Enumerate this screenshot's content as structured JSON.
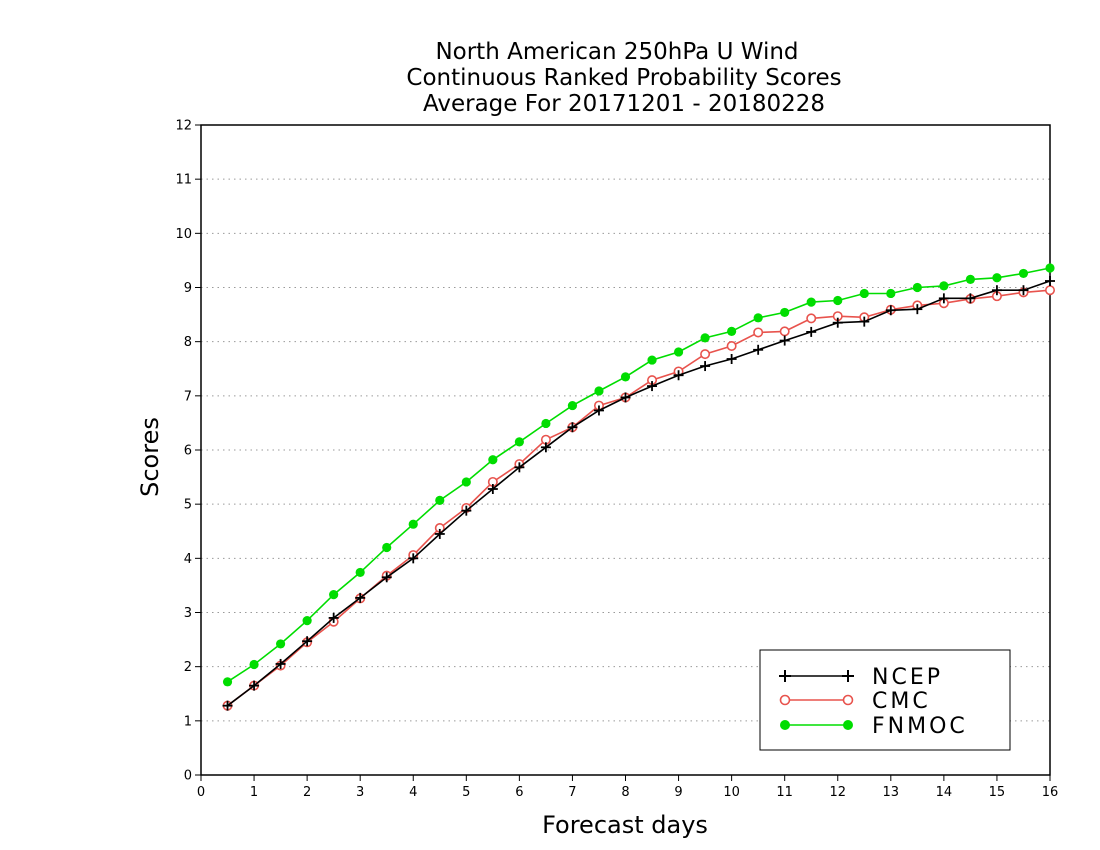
{
  "chart_data": {
    "type": "line",
    "title_lines": [
      "North American 250hPa U Wind",
      "Continuous Ranked Probability Scores",
      "Average For 20171201 - 20180228"
    ],
    "xlabel": "Forecast days",
    "ylabel": "Scores",
    "xlim": [
      0,
      16
    ],
    "ylim": [
      0,
      12
    ],
    "x_ticks": [
      "0",
      "1",
      "2",
      "3",
      "4",
      "5",
      "6",
      "7",
      "8",
      "9",
      "10",
      "11",
      "12",
      "13",
      "14",
      "15",
      "16"
    ],
    "y_ticks": [
      "0",
      "1",
      "2",
      "3",
      "4",
      "5",
      "6",
      "7",
      "8",
      "9",
      "10",
      "11",
      "12"
    ],
    "grid": "horizontal dotted",
    "legend_position": "bottom-right",
    "x": [
      0.5,
      1,
      1.5,
      2,
      2.5,
      3,
      3.5,
      4,
      4.5,
      5,
      5.5,
      6,
      6.5,
      7,
      7.5,
      8,
      8.5,
      9,
      9.5,
      10,
      10.5,
      11,
      11.5,
      12,
      12.5,
      13,
      13.5,
      14,
      14.5,
      15,
      15.5,
      16
    ],
    "series": [
      {
        "name": "NCEP",
        "color": "#000000",
        "marker": "plus",
        "values": [
          1.28,
          1.65,
          2.05,
          2.47,
          2.9,
          3.27,
          3.65,
          4.0,
          4.45,
          4.88,
          5.28,
          5.68,
          6.05,
          6.42,
          6.73,
          6.97,
          7.18,
          7.38,
          7.55,
          7.68,
          7.85,
          8.02,
          8.18,
          8.35,
          8.37,
          8.58,
          8.6,
          8.8,
          8.8,
          8.95,
          8.95,
          9.12
        ]
      },
      {
        "name": "CMC",
        "color": "#e8534d",
        "marker": "open-circle",
        "values": [
          1.28,
          1.65,
          2.02,
          2.45,
          2.83,
          3.26,
          3.68,
          4.06,
          4.56,
          4.93,
          5.41,
          5.74,
          6.19,
          6.42,
          6.82,
          6.97,
          7.29,
          7.45,
          7.77,
          7.92,
          8.17,
          8.19,
          8.43,
          8.47,
          8.45,
          8.59,
          8.67,
          8.71,
          8.79,
          8.84,
          8.91,
          8.95
        ]
      },
      {
        "name": "FNMOC",
        "color": "#00dd00",
        "marker": "filled-circle",
        "values": [
          1.72,
          2.04,
          2.42,
          2.85,
          3.33,
          3.74,
          4.2,
          4.63,
          5.07,
          5.41,
          5.82,
          6.15,
          6.49,
          6.82,
          7.09,
          7.35,
          7.66,
          7.81,
          8.07,
          8.19,
          8.44,
          8.54,
          8.73,
          8.76,
          8.89,
          8.89,
          9.0,
          9.03,
          9.15,
          9.18,
          9.26,
          9.36
        ]
      }
    ]
  }
}
